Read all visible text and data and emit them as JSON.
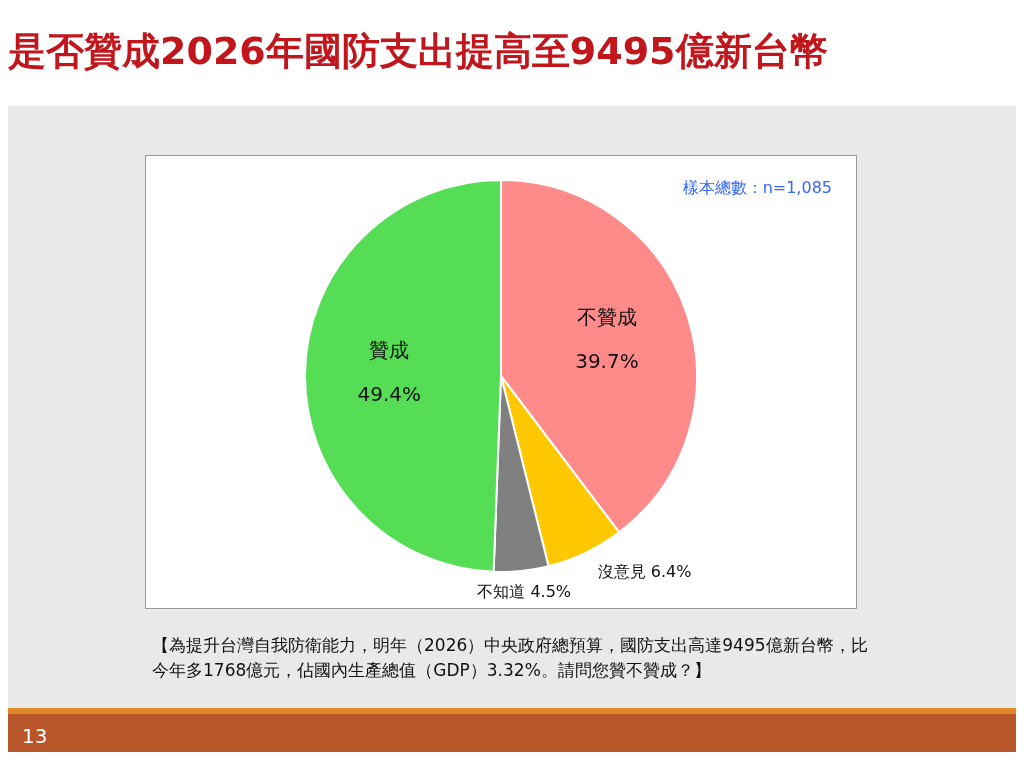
{
  "chart_data": {
    "type": "pie",
    "title": "是否贊成2026年國防支出提高至9495億新台幣",
    "categories": [
      "不贊成",
      "沒意見",
      "不知道",
      "贊成"
    ],
    "values": [
      39.7,
      6.4,
      4.5,
      49.4
    ],
    "value_labels": [
      "39.7%",
      "6.4%",
      "4.5%",
      "49.4%"
    ],
    "colors": [
      "#ff8a8a",
      "#ffc800",
      "#808080",
      "#55dd55"
    ],
    "legend": false,
    "annotations": [
      "樣本總數：n=1,085",
      "【為提升台灣自我防衛能力，明年（2026）中央政府總預算，國防支出高達9495億新台幣，比今年多1768億元，佔國內生產總值（GDP）3.32%。請問您贊不贊成？】",
      "13"
    ]
  }
}
